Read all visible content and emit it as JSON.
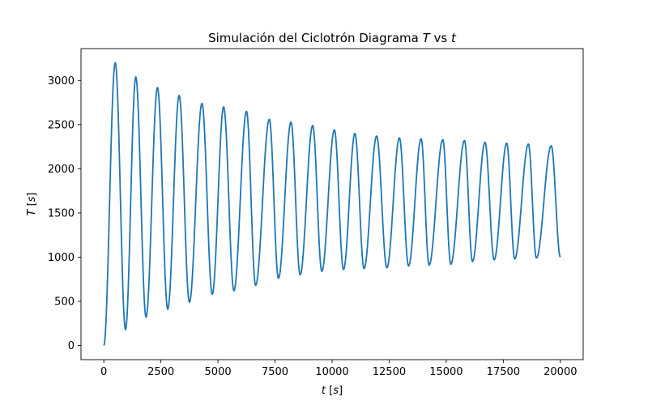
{
  "chart_data": {
    "type": "line",
    "title": "Simulación del Ciclotrón Diagrama T vs t",
    "title_parts": [
      {
        "text": "Simulación del Ciclotrón Diagrama ",
        "italic": false
      },
      {
        "text": "T",
        "italic": true
      },
      {
        "text": " vs ",
        "italic": false
      },
      {
        "text": "t",
        "italic": true
      }
    ],
    "xlabel": "t [s]",
    "xlabel_parts": [
      {
        "text": "t",
        "italic": true
      },
      {
        "text": " [",
        "italic": false
      },
      {
        "text": "s",
        "italic": true
      },
      {
        "text": "]",
        "italic": false
      }
    ],
    "ylabel": "T [s]",
    "ylabel_parts": [
      {
        "text": "T",
        "italic": true
      },
      {
        "text": " [",
        "italic": false
      },
      {
        "text": "s",
        "italic": true
      },
      {
        "text": "]",
        "italic": false
      }
    ],
    "xlim": [
      -1000,
      21000
    ],
    "ylim": [
      -160,
      3360
    ],
    "xticks": [
      0,
      2500,
      5000,
      7500,
      10000,
      12500,
      15000,
      17500,
      20000
    ],
    "yticks": [
      0,
      500,
      1000,
      1500,
      2000,
      2500,
      3000
    ],
    "grid": false,
    "color": "#1f77b4",
    "series": [
      {
        "x": [
          0,
          500,
          950,
          1400,
          1850,
          2350,
          2800,
          3300,
          3750,
          4300,
          4750,
          5250,
          5700,
          6250,
          6650,
          7250,
          7650,
          8200,
          8600,
          9150,
          9550,
          10100,
          10500,
          11000,
          11400,
          11950,
          12400,
          12950,
          13350,
          13900,
          14250,
          14850,
          15200,
          15800,
          16150,
          16700,
          17100,
          17650,
          18000,
          18600,
          18950,
          19600,
          20000
        ],
        "y": [
          0,
          3200,
          180,
          3040,
          320,
          2920,
          410,
          2830,
          490,
          2740,
          580,
          2700,
          620,
          2650,
          680,
          2560,
          760,
          2530,
          800,
          2490,
          840,
          2440,
          860,
          2400,
          870,
          2370,
          880,
          2350,
          900,
          2340,
          910,
          2330,
          920,
          2320,
          950,
          2300,
          970,
          2290,
          980,
          2280,
          990,
          2260,
          1000
        ]
      }
    ]
  }
}
